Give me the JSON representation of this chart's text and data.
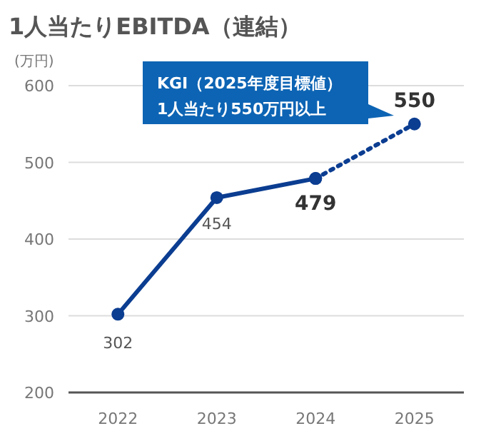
{
  "chart_data": {
    "type": "line",
    "title": "1人当たりEBITDA（連結）",
    "ylabel": "(万円)",
    "categories": [
      "2022",
      "2023",
      "2024",
      "2025"
    ],
    "series": [
      {
        "color": "#0b3d91",
        "values": [
          302,
          454,
          479,
          null
        ],
        "line_style": "solid",
        "value_labels": [
          "302",
          "454",
          "479",
          null
        ]
      },
      {
        "color": "#0b3d91",
        "values": [
          null,
          null,
          479,
          550
        ],
        "line_style": "dotted",
        "value_labels": [
          null,
          null,
          null,
          "550"
        ]
      }
    ],
    "ylim": [
      200,
      600
    ],
    "yticks": [
      200,
      300,
      400,
      500,
      600
    ],
    "grid": "y",
    "marker": "circle",
    "annotations": [
      "KGI（2025年度目標値）\n1人当たり550万円以上"
    ]
  }
}
